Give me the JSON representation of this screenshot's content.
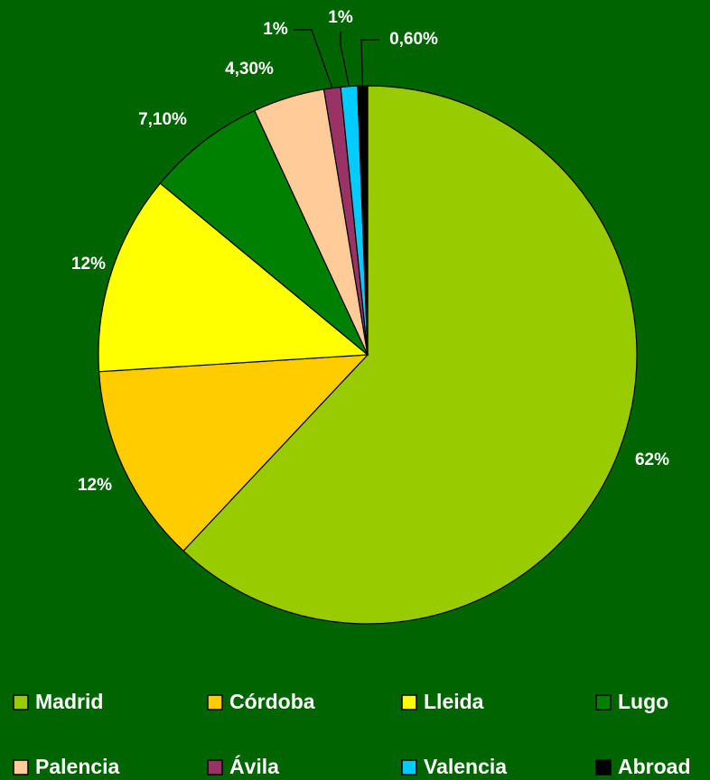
{
  "chart_data": {
    "type": "pie",
    "categories": [
      "Madrid",
      "Córdoba",
      "Lleida",
      "Lugo",
      "Palencia",
      "Ávila",
      "Valencia",
      "Abroad"
    ],
    "values": [
      62,
      12,
      12,
      7.1,
      4.3,
      1,
      1,
      0.6
    ],
    "value_labels": [
      "62%",
      "12%",
      "12%",
      "7,10%",
      "4,30%",
      "1%",
      "1%",
      "0,60%"
    ],
    "colors": [
      "#99cc00",
      "#ffcc00",
      "#ffff00",
      "#008000",
      "#ffcc99",
      "#993366",
      "#00ccff",
      "#000000"
    ],
    "legend": "bottom"
  }
}
